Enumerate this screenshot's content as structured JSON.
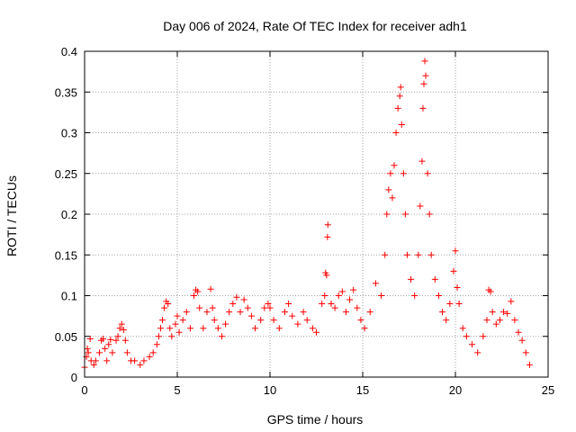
{
  "chart_data": {
    "type": "scatter",
    "title": "Day 006 of 2024, Rate Of TEC Index for receiver adh1",
    "xlabel": "GPS time / hours",
    "ylabel": "ROTI / TECUs",
    "xlim": [
      0,
      25
    ],
    "ylim": [
      0,
      0.4
    ],
    "x_ticks": [
      0,
      5,
      10,
      15,
      20,
      25
    ],
    "x_tick_labels": [
      "0",
      "5",
      "10",
      "15",
      "20",
      "25"
    ],
    "y_ticks": [
      0,
      0.05,
      0.1,
      0.15,
      0.2,
      0.25,
      0.3,
      0.35,
      0.4
    ],
    "y_tick_labels": [
      "0",
      "0.05",
      "0.1",
      "0.15",
      "0.2",
      "0.25",
      "0.3",
      "0.35",
      "0.4"
    ],
    "grid": true,
    "marker": "+",
    "marker_color": "#ff0000",
    "series": [
      {
        "name": "ROTI",
        "points": [
          [
            0.0,
            0.012
          ],
          [
            0.1,
            0.025
          ],
          [
            0.15,
            0.035
          ],
          [
            0.2,
            0.03
          ],
          [
            0.3,
            0.047
          ],
          [
            0.35,
            0.02
          ],
          [
            0.5,
            0.015
          ],
          [
            0.6,
            0.02
          ],
          [
            0.8,
            0.03
          ],
          [
            0.9,
            0.045
          ],
          [
            1.0,
            0.047
          ],
          [
            1.1,
            0.035
          ],
          [
            1.2,
            0.02
          ],
          [
            1.3,
            0.04
          ],
          [
            1.4,
            0.046
          ],
          [
            1.5,
            0.03
          ],
          [
            1.7,
            0.045
          ],
          [
            1.8,
            0.05
          ],
          [
            1.9,
            0.06
          ],
          [
            2.0,
            0.065
          ],
          [
            2.1,
            0.058
          ],
          [
            2.2,
            0.045
          ],
          [
            2.3,
            0.03
          ],
          [
            2.5,
            0.02
          ],
          [
            2.7,
            0.02
          ],
          [
            3.0,
            0.015
          ],
          [
            3.2,
            0.02
          ],
          [
            3.5,
            0.025
          ],
          [
            3.7,
            0.03
          ],
          [
            3.9,
            0.04
          ],
          [
            4.0,
            0.05
          ],
          [
            4.1,
            0.06
          ],
          [
            4.2,
            0.07
          ],
          [
            4.3,
            0.085
          ],
          [
            4.4,
            0.093
          ],
          [
            4.5,
            0.09
          ],
          [
            4.6,
            0.06
          ],
          [
            4.7,
            0.05
          ],
          [
            4.9,
            0.065
          ],
          [
            5.0,
            0.075
          ],
          [
            5.1,
            0.055
          ],
          [
            5.3,
            0.07
          ],
          [
            5.5,
            0.08
          ],
          [
            5.7,
            0.06
          ],
          [
            5.9,
            0.1
          ],
          [
            6.0,
            0.107
          ],
          [
            6.1,
            0.105
          ],
          [
            6.2,
            0.085
          ],
          [
            6.4,
            0.06
          ],
          [
            6.6,
            0.08
          ],
          [
            6.8,
            0.108
          ],
          [
            6.9,
            0.085
          ],
          [
            7.0,
            0.07
          ],
          [
            7.2,
            0.06
          ],
          [
            7.4,
            0.05
          ],
          [
            7.6,
            0.065
          ],
          [
            7.8,
            0.08
          ],
          [
            8.0,
            0.09
          ],
          [
            8.2,
            0.098
          ],
          [
            8.4,
            0.08
          ],
          [
            8.6,
            0.095
          ],
          [
            8.8,
            0.085
          ],
          [
            9.0,
            0.075
          ],
          [
            9.2,
            0.06
          ],
          [
            9.5,
            0.07
          ],
          [
            9.7,
            0.085
          ],
          [
            9.9,
            0.09
          ],
          [
            10.0,
            0.085
          ],
          [
            10.2,
            0.07
          ],
          [
            10.5,
            0.06
          ],
          [
            10.8,
            0.08
          ],
          [
            11.0,
            0.09
          ],
          [
            11.2,
            0.075
          ],
          [
            11.5,
            0.065
          ],
          [
            11.8,
            0.08
          ],
          [
            12.0,
            0.07
          ],
          [
            12.3,
            0.06
          ],
          [
            12.5,
            0.055
          ],
          [
            12.8,
            0.09
          ],
          [
            13.0,
            0.128
          ],
          [
            13.05,
            0.125
          ],
          [
            12.95,
            0.1
          ],
          [
            13.1,
            0.172
          ],
          [
            13.12,
            0.187
          ],
          [
            13.3,
            0.09
          ],
          [
            13.5,
            0.085
          ],
          [
            13.7,
            0.1
          ],
          [
            13.9,
            0.105
          ],
          [
            14.1,
            0.08
          ],
          [
            14.3,
            0.095
          ],
          [
            14.5,
            0.107
          ],
          [
            14.7,
            0.085
          ],
          [
            14.9,
            0.07
          ],
          [
            15.1,
            0.06
          ],
          [
            15.4,
            0.08
          ],
          [
            15.7,
            0.115
          ],
          [
            16.0,
            0.1
          ],
          [
            16.2,
            0.15
          ],
          [
            16.3,
            0.2
          ],
          [
            16.4,
            0.23
          ],
          [
            16.5,
            0.25
          ],
          [
            16.6,
            0.22
          ],
          [
            16.7,
            0.26
          ],
          [
            16.8,
            0.3
          ],
          [
            16.9,
            0.33
          ],
          [
            17.0,
            0.345
          ],
          [
            17.05,
            0.356
          ],
          [
            17.1,
            0.31
          ],
          [
            17.2,
            0.25
          ],
          [
            17.3,
            0.2
          ],
          [
            17.4,
            0.15
          ],
          [
            17.6,
            0.12
          ],
          [
            17.8,
            0.1
          ],
          [
            18.0,
            0.15
          ],
          [
            18.1,
            0.21
          ],
          [
            18.2,
            0.265
          ],
          [
            18.25,
            0.33
          ],
          [
            18.3,
            0.36
          ],
          [
            18.35,
            0.388
          ],
          [
            18.4,
            0.37
          ],
          [
            18.5,
            0.25
          ],
          [
            18.6,
            0.2
          ],
          [
            18.7,
            0.15
          ],
          [
            18.9,
            0.12
          ],
          [
            19.1,
            0.1
          ],
          [
            19.3,
            0.08
          ],
          [
            19.5,
            0.07
          ],
          [
            19.7,
            0.09
          ],
          [
            19.9,
            0.13
          ],
          [
            20.0,
            0.155
          ],
          [
            20.1,
            0.11
          ],
          [
            20.2,
            0.09
          ],
          [
            20.4,
            0.06
          ],
          [
            20.6,
            0.05
          ],
          [
            20.9,
            0.04
          ],
          [
            21.2,
            0.03
          ],
          [
            21.5,
            0.05
          ],
          [
            21.7,
            0.07
          ],
          [
            21.8,
            0.107
          ],
          [
            21.9,
            0.105
          ],
          [
            22.0,
            0.08
          ],
          [
            22.2,
            0.065
          ],
          [
            22.4,
            0.07
          ],
          [
            22.6,
            0.08
          ],
          [
            22.8,
            0.078
          ],
          [
            23.0,
            0.093
          ],
          [
            23.2,
            0.07
          ],
          [
            23.4,
            0.055
          ],
          [
            23.6,
            0.045
          ],
          [
            23.8,
            0.03
          ],
          [
            24.0,
            0.015
          ]
        ]
      }
    ]
  }
}
